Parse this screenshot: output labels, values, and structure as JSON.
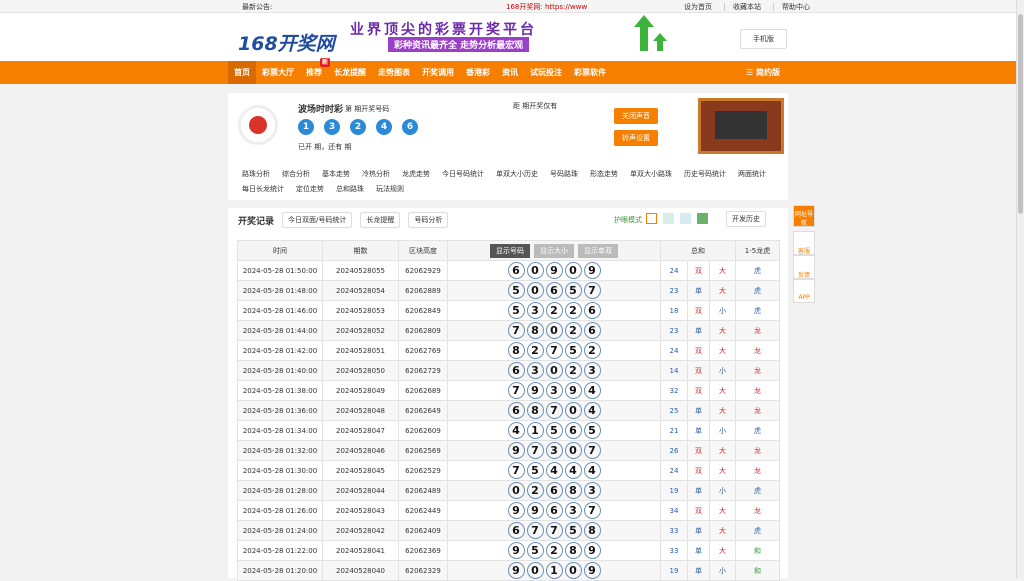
{
  "topbar": {
    "notice": "最新公告:",
    "site": "168开奖网: https://www",
    "links": [
      "设为首页",
      "收藏本站",
      "帮助中心"
    ]
  },
  "header": {
    "logo": "168开奖网",
    "banner_title": "业界顶尖的彩票开奖平台",
    "banner_sub": "彩种资讯最齐全  走势分析最宏观",
    "mobile": "手机版"
  },
  "nav": {
    "items": [
      "首页",
      "彩票大厅",
      "推荐",
      "长龙提醒",
      "走势图表",
      "开奖调用",
      "香港彩",
      "资讯",
      "试玩投注",
      "彩票软件"
    ],
    "badge": "新",
    "simple": "简约版"
  },
  "lottery": {
    "name": "波场时时彩",
    "draw_label": "第  期开奖号码",
    "balls": [
      "1",
      "3",
      "2",
      "4",
      "6"
    ],
    "status": "已开  期，还有  期",
    "countdown": "距  期开奖仅有",
    "buttons": [
      "关闭声音",
      "铃声设置"
    ]
  },
  "links": [
    [
      "路珠分析",
      "综合分析",
      "基本走势",
      "冷热分析",
      "龙虎走势",
      "今日号码统计",
      "单双大小历史",
      "号码路珠",
      "形态走势",
      "单双大小路珠",
      "历史号码统计",
      "两面统计"
    ],
    [
      "每日长龙统计",
      "定位走势",
      "总和路珠",
      "玩法规则"
    ]
  ],
  "records": {
    "title": "开奖记录",
    "tabs": [
      "今日双面/号码统计",
      "长龙提醒",
      "号码分析"
    ],
    "eye": "护眼模式",
    "history": "开发历史",
    "headers": [
      "时间",
      "期数",
      "区块高度",
      "总和",
      "1-5龙虎"
    ],
    "toggles": [
      "显示号码",
      "显示大小",
      "显示单双"
    ],
    "rows": [
      [
        "2024-05-28 01:50:00",
        "20240528055",
        "62062929",
        [
          "6",
          "0",
          "9",
          "0",
          "9"
        ],
        "24",
        "双",
        "大",
        "虎"
      ],
      [
        "2024-05-28 01:48:00",
        "20240528054",
        "62062889",
        [
          "5",
          "0",
          "6",
          "5",
          "7"
        ],
        "23",
        "单",
        "大",
        "虎"
      ],
      [
        "2024-05-28 01:46:00",
        "20240528053",
        "62062849",
        [
          "5",
          "3",
          "2",
          "2",
          "6"
        ],
        "18",
        "双",
        "小",
        "虎"
      ],
      [
        "2024-05-28 01:44:00",
        "20240528052",
        "62062809",
        [
          "7",
          "8",
          "0",
          "2",
          "6"
        ],
        "23",
        "单",
        "大",
        "龙"
      ],
      [
        "2024-05-28 01:42:00",
        "20240528051",
        "62062769",
        [
          "8",
          "2",
          "7",
          "5",
          "2"
        ],
        "24",
        "双",
        "大",
        "龙"
      ],
      [
        "2024-05-28 01:40:00",
        "20240528050",
        "62062729",
        [
          "6",
          "3",
          "0",
          "2",
          "3"
        ],
        "14",
        "双",
        "小",
        "龙"
      ],
      [
        "2024-05-28 01:38:00",
        "20240528049",
        "62062689",
        [
          "7",
          "9",
          "3",
          "9",
          "4"
        ],
        "32",
        "双",
        "大",
        "龙"
      ],
      [
        "2024-05-28 01:36:00",
        "20240528048",
        "62062649",
        [
          "6",
          "8",
          "7",
          "0",
          "4"
        ],
        "25",
        "单",
        "大",
        "龙"
      ],
      [
        "2024-05-28 01:34:00",
        "20240528047",
        "62062609",
        [
          "4",
          "1",
          "5",
          "6",
          "5"
        ],
        "21",
        "单",
        "小",
        "虎"
      ],
      [
        "2024-05-28 01:32:00",
        "20240528046",
        "62062569",
        [
          "9",
          "7",
          "3",
          "0",
          "7"
        ],
        "26",
        "双",
        "大",
        "龙"
      ],
      [
        "2024-05-28 01:30:00",
        "20240528045",
        "62062529",
        [
          "7",
          "5",
          "4",
          "4",
          "4"
        ],
        "24",
        "双",
        "大",
        "龙"
      ],
      [
        "2024-05-28 01:28:00",
        "20240528044",
        "62062489",
        [
          "0",
          "2",
          "6",
          "8",
          "3"
        ],
        "19",
        "单",
        "小",
        "虎"
      ],
      [
        "2024-05-28 01:26:00",
        "20240528043",
        "62062449",
        [
          "9",
          "9",
          "6",
          "3",
          "7"
        ],
        "34",
        "双",
        "大",
        "龙"
      ],
      [
        "2024-05-28 01:24:00",
        "20240528042",
        "62062409",
        [
          "6",
          "7",
          "7",
          "5",
          "8"
        ],
        "33",
        "单",
        "大",
        "虎"
      ],
      [
        "2024-05-28 01:22:00",
        "20240528041",
        "62062369",
        [
          "9",
          "5",
          "2",
          "8",
          "9"
        ],
        "33",
        "单",
        "大",
        "和"
      ],
      [
        "2024-05-28 01:20:00",
        "20240528040",
        "62062329",
        [
          "9",
          "0",
          "1",
          "0",
          "9"
        ],
        "19",
        "单",
        "小",
        "和"
      ]
    ]
  },
  "sidebar": [
    "网址导航",
    "客服",
    "反馈",
    "APP"
  ]
}
